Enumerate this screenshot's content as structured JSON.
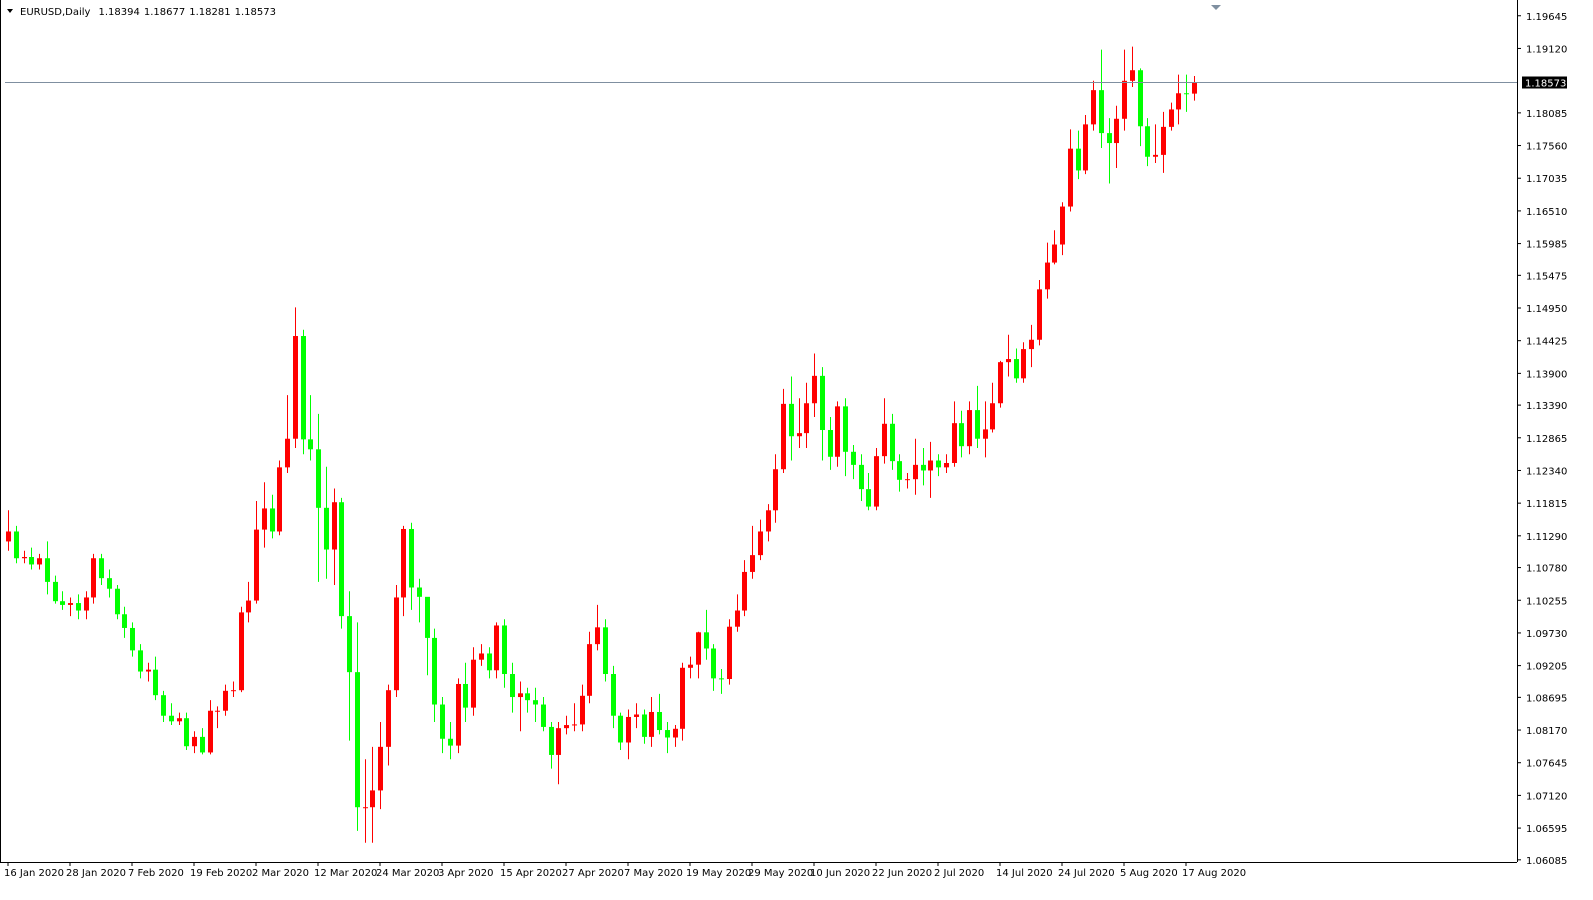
{
  "chart_data": {
    "type": "candlestick",
    "title": "EURUSD,Daily",
    "up_color": "#ff0000",
    "down_color": "#00ff00",
    "price_line_color": "#7f8fa0",
    "categories": [
      "16 Jan 2020",
      null,
      null,
      null,
      null,
      null,
      null,
      null,
      "28 Jan 2020",
      null,
      null,
      null,
      null,
      null,
      null,
      null,
      "7 Feb 2020",
      null,
      null,
      null,
      null,
      null,
      null,
      null,
      "19 Feb 2020",
      null,
      null,
      null,
      null,
      null,
      null,
      null,
      "2 Mar 2020",
      null,
      null,
      null,
      null,
      null,
      null,
      null,
      "12 Mar 2020",
      null,
      null,
      null,
      null,
      null,
      null,
      null,
      "24 Mar 2020",
      null,
      null,
      null,
      null,
      null,
      null,
      null,
      "3 Apr 2020",
      null,
      null,
      null,
      null,
      null,
      null,
      null,
      "15 Apr 2020",
      null,
      null,
      null,
      null,
      null,
      null,
      null,
      "27 Apr 2020",
      null,
      null,
      null,
      null,
      null,
      null,
      null,
      "7 May 2020",
      null,
      null,
      null,
      null,
      null,
      null,
      null,
      "19 May 2020",
      null,
      null,
      null,
      null,
      null,
      null,
      null,
      "29 May 2020",
      null,
      null,
      null,
      null,
      null,
      null,
      null,
      "10 Jun 2020",
      null,
      null,
      null,
      null,
      null,
      null,
      null,
      "22 Jun 2020",
      null,
      null,
      null,
      null,
      null,
      null,
      null,
      "2 Jul 2020",
      null,
      null,
      null,
      null,
      null,
      null,
      null,
      "14 Jul 2020",
      null,
      null,
      null,
      null,
      null,
      null,
      null,
      "24 Jul 2020",
      null,
      null,
      null,
      null,
      null,
      null,
      null,
      "5 Aug 2020",
      null,
      null,
      null,
      null,
      null,
      null,
      null,
      "17 Aug 2020",
      null
    ],
    "series": {
      "open": [
        1.112,
        1.1136,
        1.1093,
        1.1095,
        1.1083,
        1.1093,
        1.1055,
        1.1024,
        1.1018,
        1.1021,
        1.1009,
        1.103,
        1.1093,
        1.1061,
        1.1044,
        1.1003,
        1.0981,
        1.0945,
        1.0911,
        1.0914,
        1.0873,
        1.084,
        1.0831,
        1.0836,
        1.0791,
        1.0806,
        1.0781,
        1.0848,
        1.0848,
        1.088,
        1.0881,
        1.1006,
        1.1025,
        1.1139,
        1.1173,
        1.1136,
        1.1239,
        1.1285,
        1.145,
        1.1284,
        1.1268,
        1.1174,
        1.1107,
        1.1183,
        1.1,
        1.091,
        1.0693,
        1.0693,
        1.072,
        1.079,
        1.0881,
        1.103,
        1.114,
        1.1046,
        1.1031,
        1.0965,
        1.0858,
        1.0803,
        1.0792,
        1.0891,
        1.0853,
        1.093,
        1.094,
        1.0913,
        1.0985,
        1.0907,
        1.087,
        1.0876,
        1.0865,
        1.0858,
        1.0822,
        1.0777,
        1.082,
        1.0825,
        1.0826,
        1.0872,
        1.0955,
        1.0982,
        1.0907,
        1.084,
        1.0797,
        1.0838,
        1.0842,
        1.0806,
        1.0846,
        1.0817,
        1.0805,
        1.0819,
        1.0917,
        1.0922,
        1.0974,
        1.0948,
        1.09,
        1.0899,
        1.0983,
        1.1009,
        1.1071,
        1.1098,
        1.1136,
        1.117,
        1.1236,
        1.1341,
        1.1289,
        1.1294,
        1.1342,
        1.1386,
        1.1299,
        1.1256,
        1.1337,
        1.1264,
        1.1243,
        1.1204,
        1.1176,
        1.1257,
        1.1309,
        1.1249,
        1.1219,
        1.122,
        1.1243,
        1.1234,
        1.125,
        1.1239,
        1.1246,
        1.131,
        1.1273,
        1.1331,
        1.1285,
        1.13,
        1.1342,
        1.1408,
        1.1413,
        1.1382,
        1.1429,
        1.1444,
        1.1525,
        1.1568,
        1.1597,
        1.1658,
        1.1751,
        1.1716,
        1.179,
        1.1845,
        1.1776,
        1.176,
        1.1799,
        1.186,
        1.1877,
        1.1787,
        1.1738,
        1.1741,
        1.1786,
        1.1814,
        1.184,
        1.18394
      ],
      "high": [
        1.117,
        1.1145,
        1.1105,
        1.111,
        1.11,
        1.112,
        1.1065,
        1.104,
        1.103,
        1.1035,
        1.104,
        1.11,
        1.11,
        1.1075,
        1.105,
        1.1015,
        1.099,
        1.0955,
        1.0925,
        1.0935,
        1.088,
        1.086,
        1.0845,
        1.0845,
        1.0815,
        1.082,
        1.0865,
        1.0855,
        1.089,
        1.0895,
        1.1015,
        1.1055,
        1.1185,
        1.1215,
        1.1195,
        1.125,
        1.1355,
        1.1496,
        1.146,
        1.1355,
        1.1325,
        1.124,
        1.1205,
        1.119,
        1.104,
        1.099,
        1.077,
        1.079,
        1.083,
        1.089,
        1.105,
        1.1145,
        1.115,
        1.106,
        1.103,
        1.098,
        1.087,
        1.083,
        1.09,
        1.0925,
        1.095,
        1.0955,
        1.095,
        1.099,
        1.0995,
        1.0925,
        1.0895,
        1.0885,
        1.0885,
        1.087,
        1.083,
        1.083,
        1.084,
        1.086,
        1.089,
        1.0975,
        1.1018,
        1.0995,
        1.092,
        1.0845,
        1.085,
        1.086,
        1.085,
        1.087,
        1.0875,
        1.083,
        1.0825,
        1.0925,
        1.0935,
        1.0975,
        1.101,
        1.0955,
        1.0915,
        1.0995,
        1.1035,
        1.109,
        1.1145,
        1.1155,
        1.118,
        1.126,
        1.1365,
        1.1385,
        1.135,
        1.1375,
        1.1422,
        1.14,
        1.132,
        1.1345,
        1.135,
        1.1275,
        1.126,
        1.123,
        1.127,
        1.135,
        1.1325,
        1.126,
        1.123,
        1.1285,
        1.127,
        1.128,
        1.126,
        1.126,
        1.1345,
        1.133,
        1.1345,
        1.137,
        1.1345,
        1.1375,
        1.141,
        1.1452,
        1.143,
        1.144,
        1.1468,
        1.154,
        1.16,
        1.162,
        1.1665,
        1.1782,
        1.178,
        1.1805,
        1.186,
        1.191,
        1.18,
        1.182,
        1.191,
        1.1915,
        1.188,
        1.18,
        1.179,
        1.181,
        1.1825,
        1.187,
        1.187,
        1.18677
      ],
      "low": [
        1.1105,
        1.1085,
        1.1085,
        1.1075,
        1.1075,
        1.1035,
        1.102,
        1.101,
        1.1,
        1.0995,
        1.0995,
        1.102,
        1.105,
        1.103,
        1.0995,
        1.0965,
        1.0935,
        1.09,
        1.0895,
        1.0865,
        1.083,
        1.0825,
        1.0825,
        1.0785,
        1.078,
        1.0778,
        1.0778,
        1.082,
        1.084,
        1.087,
        1.0878,
        1.099,
        1.102,
        1.111,
        1.1125,
        1.113,
        1.123,
        1.127,
        1.126,
        1.125,
        1.1055,
        1.106,
        1.105,
        1.098,
        1.08,
        1.0655,
        1.0636,
        1.0636,
        1.069,
        1.076,
        1.087,
        1.1,
        1.101,
        1.099,
        1.0905,
        1.083,
        1.078,
        1.077,
        1.078,
        1.083,
        1.084,
        1.092,
        1.09,
        1.09,
        1.0885,
        1.0845,
        1.0815,
        1.0845,
        1.083,
        1.0815,
        1.0755,
        1.073,
        1.081,
        1.0815,
        1.0815,
        1.086,
        1.0945,
        1.0895,
        1.082,
        1.0785,
        1.077,
        1.082,
        1.0795,
        1.079,
        1.081,
        1.078,
        1.079,
        1.08,
        1.09,
        1.09,
        1.093,
        1.088,
        1.0875,
        1.089,
        1.0975,
        1.1,
        1.106,
        1.109,
        1.112,
        1.115,
        1.123,
        1.125,
        1.127,
        1.127,
        1.132,
        1.125,
        1.1235,
        1.124,
        1.1225,
        1.122,
        1.1185,
        1.117,
        1.117,
        1.1245,
        1.1235,
        1.12,
        1.1205,
        1.1195,
        1.121,
        1.119,
        1.1225,
        1.123,
        1.124,
        1.1255,
        1.126,
        1.127,
        1.1255,
        1.1295,
        1.1335,
        1.1385,
        1.1375,
        1.1375,
        1.14,
        1.1435,
        1.151,
        1.1565,
        1.158,
        1.165,
        1.1702,
        1.171,
        1.178,
        1.1752,
        1.1695,
        1.172,
        1.178,
        1.185,
        1.1755,
        1.1723,
        1.1728,
        1.1712,
        1.178,
        1.179,
        1.181,
        1.18281
      ],
      "close": [
        1.1136,
        1.1093,
        1.1095,
        1.1083,
        1.1093,
        1.1055,
        1.1024,
        1.1018,
        1.1021,
        1.1009,
        1.103,
        1.1093,
        1.1061,
        1.1044,
        1.1003,
        1.0981,
        1.0945,
        1.0911,
        1.0914,
        1.0873,
        1.084,
        1.0831,
        1.0836,
        1.0791,
        1.0806,
        1.0781,
        1.0848,
        1.0848,
        1.088,
        1.0881,
        1.1006,
        1.1025,
        1.1139,
        1.1173,
        1.1136,
        1.1239,
        1.1285,
        1.145,
        1.1284,
        1.1268,
        1.1174,
        1.1107,
        1.1183,
        1.1,
        1.091,
        1.0693,
        1.0693,
        1.072,
        1.079,
        1.0881,
        1.103,
        1.114,
        1.1046,
        1.1031,
        1.0965,
        1.0858,
        1.0803,
        1.0792,
        1.0891,
        1.0853,
        1.093,
        1.094,
        1.0913,
        1.0985,
        1.0907,
        1.087,
        1.0876,
        1.0865,
        1.0858,
        1.0822,
        1.0777,
        1.082,
        1.0825,
        1.0826,
        1.0872,
        1.0955,
        1.0982,
        1.0907,
        1.084,
        1.0797,
        1.0838,
        1.0842,
        1.0806,
        1.0846,
        1.0817,
        1.0805,
        1.0819,
        1.0917,
        1.0922,
        1.0974,
        1.0948,
        1.09,
        1.0899,
        1.0983,
        1.1009,
        1.1071,
        1.1098,
        1.1136,
        1.117,
        1.1236,
        1.1341,
        1.1289,
        1.1294,
        1.1342,
        1.1386,
        1.1299,
        1.1256,
        1.1337,
        1.1264,
        1.1243,
        1.1204,
        1.1176,
        1.1257,
        1.1309,
        1.1249,
        1.1219,
        1.122,
        1.1243,
        1.1234,
        1.125,
        1.1239,
        1.1246,
        1.131,
        1.1273,
        1.1331,
        1.1285,
        1.13,
        1.1342,
        1.1408,
        1.1413,
        1.1382,
        1.1429,
        1.1444,
        1.1525,
        1.1568,
        1.1597,
        1.1658,
        1.1751,
        1.1716,
        1.179,
        1.1845,
        1.1776,
        1.176,
        1.1799,
        1.186,
        1.1877,
        1.1787,
        1.1738,
        1.1741,
        1.1786,
        1.1814,
        1.184,
        1.1839,
        1.18573
      ]
    },
    "ylim": [
      1.0605,
      1.1985
    ],
    "yticks": [
      1.19645,
      {
        "value": 1.1912,
        "label": "1.19120"
      },
      1.18085,
      {
        "value": 1.1756,
        "label": "1.17560"
      },
      1.17035,
      {
        "value": 1.1651,
        "label": "1.16510"
      },
      1.15985,
      1.15475,
      {
        "value": 1.1495,
        "label": "1.14950"
      },
      1.14425,
      {
        "value": 1.139,
        "label": "1.13900"
      },
      {
        "value": 1.1339,
        "label": "1.13390"
      },
      1.12865,
      {
        "value": 1.1234,
        "label": "1.12340"
      },
      1.11815,
      {
        "value": 1.1129,
        "label": "1.11290"
      },
      {
        "value": 1.1078,
        "label": "1.10780"
      },
      1.10255,
      {
        "value": 1.0973,
        "label": "1.09730"
      },
      1.09205,
      1.08695,
      {
        "value": 1.0817,
        "label": "1.08170"
      },
      1.07645,
      {
        "value": 1.0712,
        "label": "1.07120"
      },
      1.06595,
      1.06085
    ]
  }
}
